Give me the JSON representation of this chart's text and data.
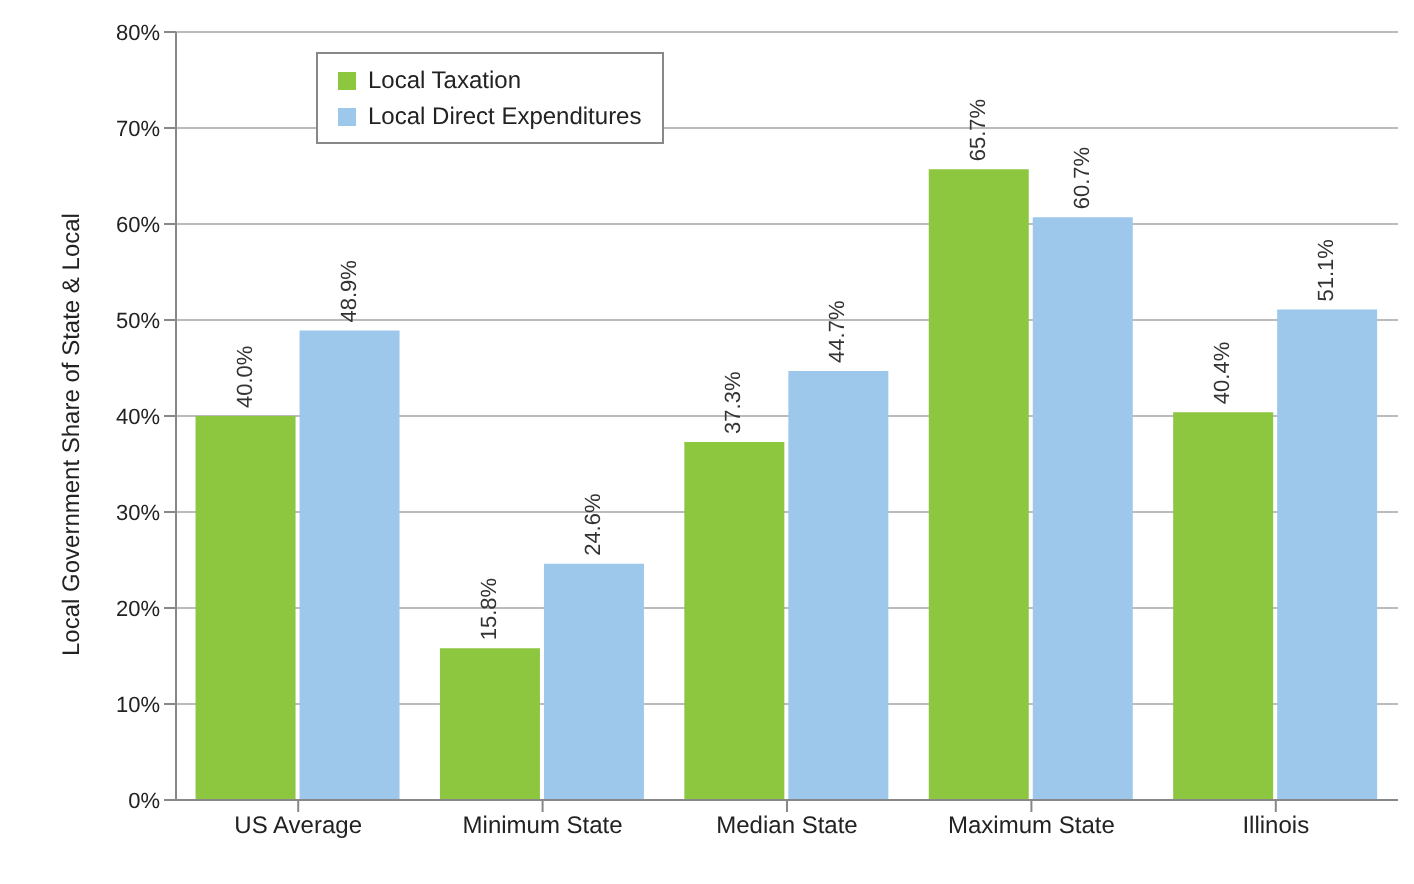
{
  "chart_data": {
    "type": "bar",
    "ylabel": "Local Government Share of State & Local",
    "categories": [
      "US Average",
      "Minimum State",
      "Median State",
      "Maximum State",
      "Illinois"
    ],
    "series": [
      {
        "name": "Local Taxation",
        "color": "#8dc63f",
        "values": [
          40.0,
          15.8,
          37.3,
          65.7,
          40.4
        ],
        "value_labels": [
          "40.0%",
          "15.8%",
          "37.3%",
          "65.7%",
          "40.4%"
        ]
      },
      {
        "name": "Local Direct Expenditures",
        "color": "#9dc8ec",
        "values": [
          48.9,
          24.6,
          44.7,
          60.7,
          51.1
        ],
        "value_labels": [
          "48.9%",
          "24.6%",
          "44.7%",
          "60.7%",
          "51.1%"
        ]
      }
    ],
    "ylim": [
      0,
      80
    ],
    "yticks": [
      {
        "value": 0,
        "label": "0%"
      },
      {
        "value": 10,
        "label": "10%"
      },
      {
        "value": 20,
        "label": "20%"
      },
      {
        "value": 30,
        "label": "30%"
      },
      {
        "value": 40,
        "label": "40%"
      },
      {
        "value": 50,
        "label": "50%"
      },
      {
        "value": 60,
        "label": "60%"
      },
      {
        "value": 70,
        "label": "70%"
      },
      {
        "value": 80,
        "label": "80%"
      }
    ],
    "grid": "y",
    "legend": "top left"
  }
}
